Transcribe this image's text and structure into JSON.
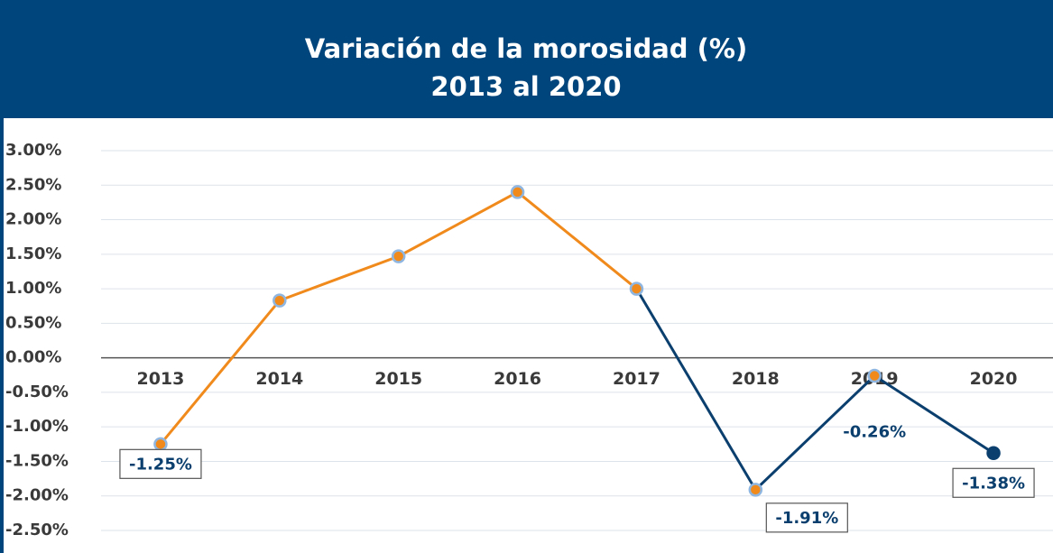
{
  "chart_data": {
    "type": "line",
    "title": [
      "Variación de la morosidad (%)",
      "2013 al 2020"
    ],
    "categories": [
      "2013",
      "2014",
      "2015",
      "2016",
      "2017",
      "2018",
      "2019",
      "2020"
    ],
    "series": [
      {
        "color": "#f08a1c",
        "values": [
          -1.25,
          0.83,
          1.47,
          2.4,
          1.0,
          null,
          null,
          null
        ],
        "marker_colors": [
          "#f08a1c",
          "#f08a1c",
          "#f08a1c",
          "#f08a1c",
          "#f08a1c",
          null,
          null,
          null
        ],
        "value_labels": [
          "-1.25%",
          null,
          null,
          null,
          null,
          null,
          null,
          null
        ]
      },
      {
        "color": "#0b3f6e",
        "values": [
          null,
          null,
          null,
          null,
          1.0,
          -1.91,
          -0.26,
          -1.38
        ],
        "marker_colors": [
          null,
          null,
          null,
          null,
          null,
          "#f08a1c",
          "#f08a1c",
          "#0b3f6e"
        ],
        "value_labels": [
          null,
          null,
          null,
          null,
          null,
          "-1.91%",
          "-0.26%",
          "-1.38%"
        ]
      }
    ],
    "ylim": [
      -2.5,
      3.0
    ],
    "yticks": [
      {
        "value": 3.0,
        "label": "3.00%"
      },
      {
        "value": 2.5,
        "label": "2.50%"
      },
      {
        "value": 2.0,
        "label": "2.00%"
      },
      {
        "value": 1.5,
        "label": "1.50%"
      },
      {
        "value": 1.0,
        "label": "1.00%"
      },
      {
        "value": 0.5,
        "label": "0.50%"
      },
      {
        "value": 0.0,
        "label": "0.00%"
      },
      {
        "value": -0.5,
        "label": "-0.50%"
      },
      {
        "value": -1.0,
        "label": "-1.00%"
      },
      {
        "value": -1.5,
        "label": "-1.50%"
      },
      {
        "value": -2.0,
        "label": "-2.00%"
      },
      {
        "value": -2.5,
        "label": "-2.50%"
      }
    ],
    "grid": true
  }
}
